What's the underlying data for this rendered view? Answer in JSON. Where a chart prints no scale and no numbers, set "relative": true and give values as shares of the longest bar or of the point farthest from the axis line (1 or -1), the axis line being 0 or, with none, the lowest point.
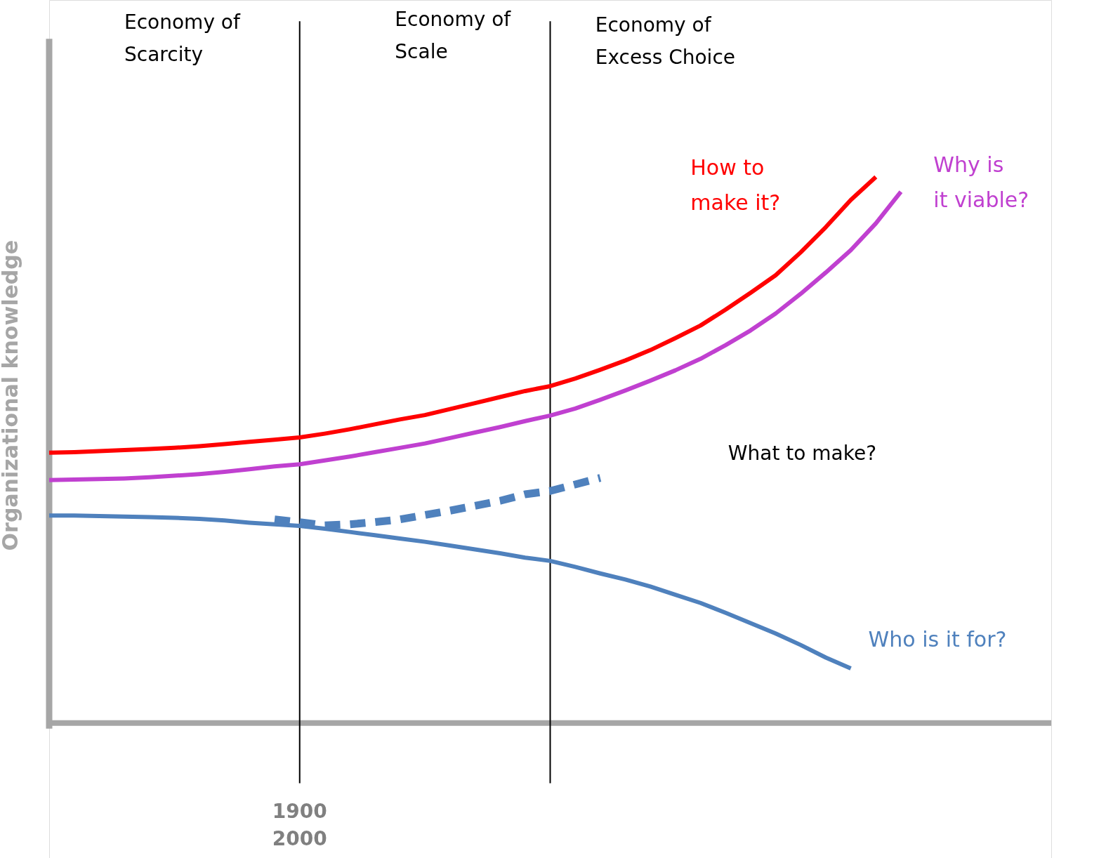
{
  "chart_data": {
    "type": "line",
    "relative": true,
    "ylabel": "Organizational knowledge",
    "categories": [
      null,
      null,
      null,
      null,
      null,
      null,
      null,
      null,
      null,
      null,
      null,
      null,
      null,
      null,
      null,
      null,
      null,
      null,
      null,
      null,
      null,
      null,
      null,
      null,
      null,
      null,
      null,
      null,
      null,
      null,
      null,
      null,
      null,
      null,
      null
    ],
    "series": [
      {
        "name": "How to make it?",
        "color": "#ff0000",
        "values": [
          0.495,
          0.496,
          0.498,
          0.5,
          0.502,
          0.504,
          0.507,
          0.511,
          0.515,
          0.519,
          0.523,
          0.53,
          0.538,
          0.547,
          0.556,
          0.564,
          0.575,
          0.586,
          0.597,
          0.608,
          0.617,
          0.631,
          0.647,
          0.664,
          0.683,
          0.705,
          0.728,
          0.757,
          0.788,
          0.82,
          0.862,
          0.908,
          0.958,
          1,
          null
        ]
      },
      {
        "name": "Why is it viable?",
        "color": "#c040d0",
        "values": [
          0.445,
          0.446,
          0.447,
          0.448,
          0.45,
          0.453,
          0.456,
          0.46,
          0.465,
          0.47,
          0.474,
          0.481,
          0.488,
          0.496,
          0.504,
          0.512,
          0.522,
          0.532,
          0.542,
          0.553,
          0.563,
          0.576,
          0.592,
          0.609,
          0.627,
          0.646,
          0.667,
          0.692,
          0.719,
          0.75,
          0.786,
          0.825,
          0.866,
          0.915,
          0.973
        ]
      },
      {
        "name": "Who is it for?",
        "color": "#4f81bd",
        "values": [
          0.38,
          0.38,
          0.379,
          0.378,
          0.377,
          0.376,
          0.374,
          0.371,
          0.367,
          0.364,
          0.361,
          0.356,
          0.35,
          0.344,
          0.338,
          0.332,
          0.325,
          0.318,
          0.311,
          0.303,
          0.297,
          0.286,
          0.274,
          0.263,
          0.25,
          0.235,
          0.22,
          0.202,
          0.183,
          0.164,
          0.143,
          0.12,
          0.1,
          null,
          null
        ]
      },
      {
        "color": "#4f81bd",
        "line_style": "dashed",
        "values": [
          null,
          null,
          null,
          null,
          null,
          null,
          null,
          null,
          null,
          0.373,
          0.368,
          0.362,
          0.364,
          0.368,
          0.373,
          0.381,
          0.389,
          0.398,
          0.407,
          0.419,
          0.425,
          0.437,
          0.449,
          null,
          null,
          null,
          null,
          null,
          null,
          null,
          null,
          null,
          null,
          null,
          null
        ]
      }
    ],
    "annotations": [
      "Economy of Scarcity",
      "Economy of Scale",
      "Economy of Excess Choice",
      "What to make?",
      "1900",
      "2000"
    ]
  }
}
